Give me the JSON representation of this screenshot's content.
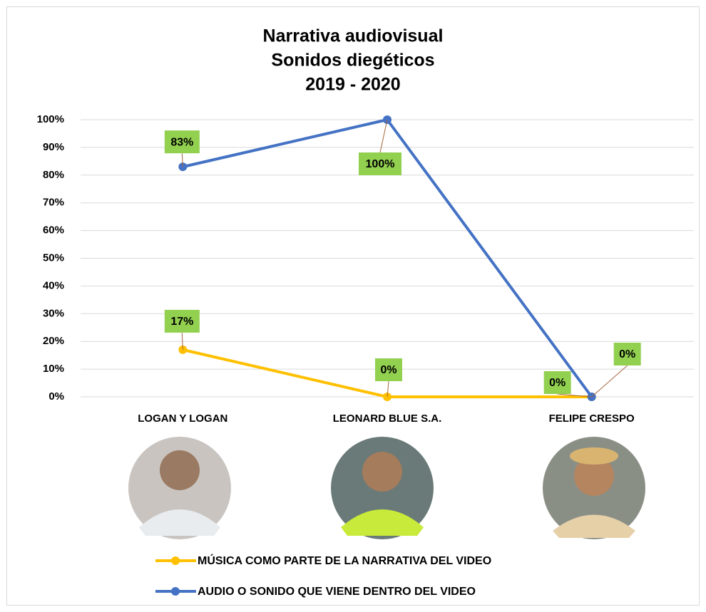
{
  "chart_data": {
    "type": "line",
    "title": [
      "Narrativa audiovisual",
      "Sonidos diegéticos",
      "2019 - 2020"
    ],
    "categories": [
      "LOGAN Y LOGAN",
      "LEONARD BLUE S.A.",
      "FELIPE CRESPO"
    ],
    "series": [
      {
        "name": "MÚSICA COMO PARTE DE LA NARRATIVA DEL VIDEO",
        "color": "#FFC000",
        "values": [
          17,
          0,
          0
        ],
        "value_labels": [
          "17%",
          "0%",
          "0%"
        ]
      },
      {
        "name": "AUDIO O SONIDO QUE VIENE DENTRO DEL VIDEO",
        "color": "#4472C4",
        "values": [
          83,
          100,
          0
        ],
        "value_labels": [
          "83%",
          "100%",
          "0%"
        ]
      }
    ],
    "ylim": [
      0,
      100
    ],
    "yticks": [
      {
        "value": 0,
        "label": "0%"
      },
      {
        "value": 10,
        "label": "10%"
      },
      {
        "value": 20,
        "label": "20%"
      },
      {
        "value": 30,
        "label": "30%"
      },
      {
        "value": 40,
        "label": "40%"
      },
      {
        "value": 50,
        "label": "50%"
      },
      {
        "value": 60,
        "label": "60%"
      },
      {
        "value": 70,
        "label": "70%"
      },
      {
        "value": 80,
        "label": "80%"
      },
      {
        "value": 90,
        "label": "90%"
      },
      {
        "value": 100,
        "label": "100%"
      }
    ],
    "grid": true,
    "label_color": "#92D050"
  }
}
